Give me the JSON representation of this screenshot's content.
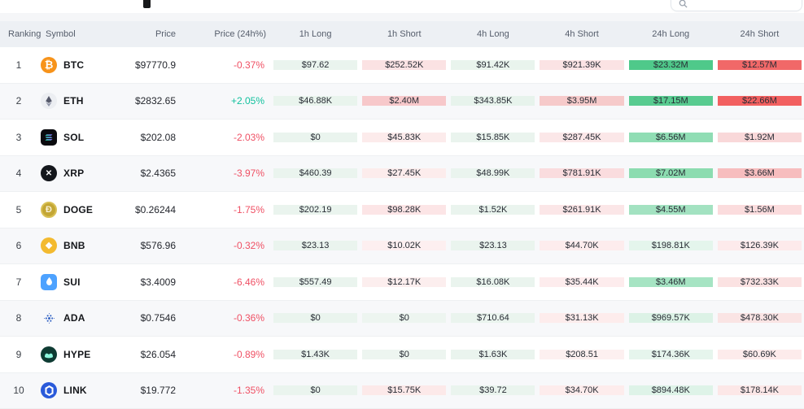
{
  "header": {
    "columns": [
      "Ranking",
      "Symbol",
      "Price",
      "Price (24h%)",
      "1h Long",
      "1h Short",
      "4h Long",
      "4h Short",
      "24h Long",
      "24h Short"
    ]
  },
  "colors": {
    "positive": "#12c19e",
    "negative": "#ef5064",
    "header_bg": "#edf0f4",
    "strong_long": "#4fc98a",
    "strong_short": "#f16868"
  },
  "rows": [
    {
      "rank": "1",
      "symbol": "BTC",
      "icon": "btc-icon",
      "price": "$97770.9",
      "change": "-0.37%",
      "cells": [
        {
          "value": "$97.62",
          "bg": "#eaf4ee"
        },
        {
          "value": "$252.52K",
          "bg": "#fbe2e3"
        },
        {
          "value": "$91.42K",
          "bg": "#e9f4ed"
        },
        {
          "value": "$921.39K",
          "bg": "#fbe3e4"
        },
        {
          "value": "$23.32M",
          "bg": "#4fc98a"
        },
        {
          "value": "$12.57M",
          "bg": "#f16868"
        }
      ]
    },
    {
      "rank": "2",
      "symbol": "ETH",
      "icon": "eth-icon",
      "price": "$2832.65",
      "change": "+2.05%",
      "cells": [
        {
          "value": "$46.88K",
          "bg": "#e9f4ed"
        },
        {
          "value": "$2.40M",
          "bg": "#f7c8ca"
        },
        {
          "value": "$343.85K",
          "bg": "#e7f3ec"
        },
        {
          "value": "$3.95M",
          "bg": "#f6caca"
        },
        {
          "value": "$17.15M",
          "bg": "#58cb90"
        },
        {
          "value": "$22.66M",
          "bg": "#f26060"
        }
      ]
    },
    {
      "rank": "3",
      "symbol": "SOL",
      "icon": "sol-icon",
      "price": "$202.08",
      "change": "-2.03%",
      "cells": [
        {
          "value": "$0",
          "bg": "#eaf4ee"
        },
        {
          "value": "$45.83K",
          "bg": "#fcebeb"
        },
        {
          "value": "$15.85K",
          "bg": "#eaf4ee"
        },
        {
          "value": "$287.45K",
          "bg": "#fbe7e8"
        },
        {
          "value": "$6.56M",
          "bg": "#90ddb4"
        },
        {
          "value": "$1.92M",
          "bg": "#f9d8d9"
        }
      ]
    },
    {
      "rank": "4",
      "symbol": "XRP",
      "icon": "xrp-icon",
      "price": "$2.4365",
      "change": "-3.97%",
      "cells": [
        {
          "value": "$460.39",
          "bg": "#eaf4ee"
        },
        {
          "value": "$27.45K",
          "bg": "#fcecec"
        },
        {
          "value": "$48.99K",
          "bg": "#eaf4ee"
        },
        {
          "value": "$781.91K",
          "bg": "#fadcde"
        },
        {
          "value": "$7.02M",
          "bg": "#8cdcb0"
        },
        {
          "value": "$3.66M",
          "bg": "#f7bdbe"
        }
      ]
    },
    {
      "rank": "5",
      "symbol": "DOGE",
      "icon": "doge-icon",
      "price": "$0.26244",
      "change": "-1.75%",
      "cells": [
        {
          "value": "$202.19",
          "bg": "#eaf4ee"
        },
        {
          "value": "$98.28K",
          "bg": "#fce5e6"
        },
        {
          "value": "$1.52K",
          "bg": "#eaf4ee"
        },
        {
          "value": "$261.91K",
          "bg": "#fbe6e7"
        },
        {
          "value": "$4.55M",
          "bg": "#a3e2c1"
        },
        {
          "value": "$1.56M",
          "bg": "#fbdcdd"
        }
      ]
    },
    {
      "rank": "6",
      "symbol": "BNB",
      "icon": "bnb-icon",
      "price": "$576.96",
      "change": "-0.32%",
      "cells": [
        {
          "value": "$23.13",
          "bg": "#eaf4ee"
        },
        {
          "value": "$10.02K",
          "bg": "#fdeff0"
        },
        {
          "value": "$23.13",
          "bg": "#eaf4ee"
        },
        {
          "value": "$44.70K",
          "bg": "#fdeced"
        },
        {
          "value": "$198.81K",
          "bg": "#e4f5ec"
        },
        {
          "value": "$126.39K",
          "bg": "#fdeaeb"
        }
      ]
    },
    {
      "rank": "7",
      "symbol": "SUI",
      "icon": "sui-icon",
      "price": "$3.4009",
      "change": "-6.46%",
      "cells": [
        {
          "value": "$557.49",
          "bg": "#eaf4ee"
        },
        {
          "value": "$12.17K",
          "bg": "#fceeee"
        },
        {
          "value": "$16.08K",
          "bg": "#eaf4ee"
        },
        {
          "value": "$35.44K",
          "bg": "#fdeced"
        },
        {
          "value": "$3.46M",
          "bg": "#a6e4c3"
        },
        {
          "value": "$732.33K",
          "bg": "#fbe2e2"
        }
      ]
    },
    {
      "rank": "8",
      "symbol": "ADA",
      "icon": "ada-icon",
      "price": "$0.7546",
      "change": "-0.36%",
      "cells": [
        {
          "value": "$0",
          "bg": "#eaf4ee"
        },
        {
          "value": "$0",
          "bg": "#edf5f0"
        },
        {
          "value": "$710.64",
          "bg": "#eaf4ee"
        },
        {
          "value": "$31.13K",
          "bg": "#fdecec"
        },
        {
          "value": "$969.57K",
          "bg": "#dcf2e6"
        },
        {
          "value": "$478.30K",
          "bg": "#fae4e4"
        }
      ]
    },
    {
      "rank": "9",
      "symbol": "HYPE",
      "icon": "hype-icon",
      "price": "$26.054",
      "change": "-0.89%",
      "cells": [
        {
          "value": "$1.43K",
          "bg": "#eaf4ee"
        },
        {
          "value": "$0",
          "bg": "#edf5f0"
        },
        {
          "value": "$1.63K",
          "bg": "#eaf4ee"
        },
        {
          "value": "$208.51",
          "bg": "#fdf0f0"
        },
        {
          "value": "$174.36K",
          "bg": "#e6f5ed"
        },
        {
          "value": "$60.69K",
          "bg": "#fdebeb"
        }
      ]
    },
    {
      "rank": "10",
      "symbol": "LINK",
      "icon": "link-icon",
      "price": "$19.772",
      "change": "-1.35%",
      "cells": [
        {
          "value": "$0",
          "bg": "#eaf4ee"
        },
        {
          "value": "$15.75K",
          "bg": "#fce9e9"
        },
        {
          "value": "$39.72",
          "bg": "#eaf4ee"
        },
        {
          "value": "$34.70K",
          "bg": "#fdecec"
        },
        {
          "value": "$894.48K",
          "bg": "#def3e8"
        },
        {
          "value": "$178.14K",
          "bg": "#fce7e7"
        }
      ]
    }
  ]
}
